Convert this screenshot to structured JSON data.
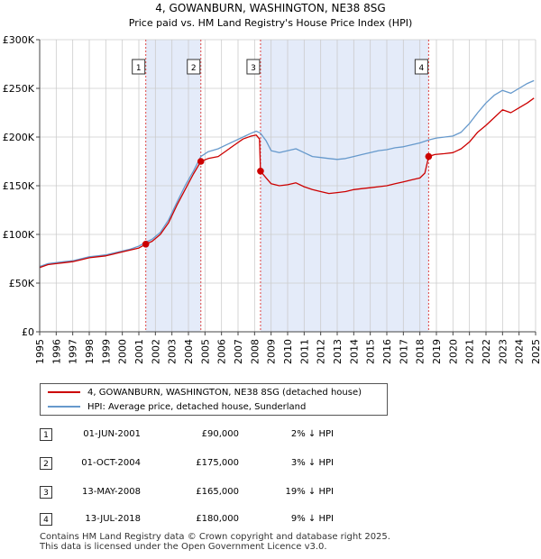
{
  "chart_data": {
    "type": "line",
    "title": "4, GOWANBURN, WASHINGTON, NE38 8SG",
    "subtitle": "Price paid vs. HM Land Registry's House Price Index (HPI)",
    "xlim": [
      1995,
      2025
    ],
    "ylim": [
      0,
      300000
    ],
    "x_ticks": [
      "1995",
      "1996",
      "1997",
      "1998",
      "1999",
      "2000",
      "2001",
      "2002",
      "2003",
      "2004",
      "2005",
      "2006",
      "2007",
      "2008",
      "2009",
      "2010",
      "2011",
      "2012",
      "2013",
      "2014",
      "2015",
      "2016",
      "2017",
      "2018",
      "2019",
      "2020",
      "2021",
      "2022",
      "2023",
      "2024",
      "2025"
    ],
    "y_ticks": [
      {
        "value": 0,
        "label": "£0"
      },
      {
        "value": 50000,
        "label": "£50K"
      },
      {
        "value": 100000,
        "label": "£100K"
      },
      {
        "value": 150000,
        "label": "£150K"
      },
      {
        "value": 200000,
        "label": "£200K"
      },
      {
        "value": 250000,
        "label": "£250K"
      },
      {
        "value": 300000,
        "label": "£300K"
      }
    ],
    "grid": true,
    "shaded_ranges": [
      [
        2001.42,
        2004.75
      ],
      [
        2008.36,
        2018.53
      ]
    ],
    "series": [
      {
        "name": "4, GOWANBURN, WASHINGTON, NE38 8SG (detached house)",
        "color": "#cc0000",
        "points": [
          [
            1995.0,
            66000
          ],
          [
            1995.5,
            69000
          ],
          [
            1996.0,
            70000
          ],
          [
            1996.5,
            71000
          ],
          [
            1997.0,
            72000
          ],
          [
            1997.5,
            74000
          ],
          [
            1998.0,
            76000
          ],
          [
            1998.5,
            77000
          ],
          [
            1999.0,
            78000
          ],
          [
            1999.5,
            80000
          ],
          [
            2000.0,
            82000
          ],
          [
            2000.5,
            84000
          ],
          [
            2001.0,
            86000
          ],
          [
            2001.42,
            90000
          ],
          [
            2001.8,
            93000
          ],
          [
            2002.3,
            100000
          ],
          [
            2002.8,
            112000
          ],
          [
            2003.3,
            130000
          ],
          [
            2003.8,
            146000
          ],
          [
            2004.3,
            162000
          ],
          [
            2004.75,
            175000
          ],
          [
            2005.2,
            178000
          ],
          [
            2005.8,
            180000
          ],
          [
            2006.3,
            186000
          ],
          [
            2006.8,
            192000
          ],
          [
            2007.3,
            198000
          ],
          [
            2007.8,
            201000
          ],
          [
            2008.1,
            202000
          ],
          [
            2008.3,
            198000
          ],
          [
            2008.36,
            165000
          ],
          [
            2008.7,
            158000
          ],
          [
            2009.0,
            152000
          ],
          [
            2009.5,
            150000
          ],
          [
            2010.0,
            151000
          ],
          [
            2010.5,
            153000
          ],
          [
            2011.0,
            149000
          ],
          [
            2011.5,
            146000
          ],
          [
            2012.0,
            144000
          ],
          [
            2012.5,
            142000
          ],
          [
            2013.0,
            143000
          ],
          [
            2013.5,
            144000
          ],
          [
            2014.0,
            146000
          ],
          [
            2014.5,
            147000
          ],
          [
            2015.0,
            148000
          ],
          [
            2015.5,
            149000
          ],
          [
            2016.0,
            150000
          ],
          [
            2016.5,
            152000
          ],
          [
            2017.0,
            154000
          ],
          [
            2017.5,
            156000
          ],
          [
            2018.0,
            158000
          ],
          [
            2018.3,
            163000
          ],
          [
            2018.53,
            180000
          ],
          [
            2018.9,
            182000
          ],
          [
            2019.5,
            183000
          ],
          [
            2020.0,
            184000
          ],
          [
            2020.5,
            188000
          ],
          [
            2021.0,
            195000
          ],
          [
            2021.5,
            205000
          ],
          [
            2022.0,
            212000
          ],
          [
            2022.5,
            220000
          ],
          [
            2023.0,
            228000
          ],
          [
            2023.5,
            225000
          ],
          [
            2024.0,
            230000
          ],
          [
            2024.5,
            235000
          ],
          [
            2024.9,
            240000
          ]
        ]
      },
      {
        "name": "HPI: Average price, detached house, Sunderland",
        "color": "#6699cc",
        "points": [
          [
            1995.0,
            67000
          ],
          [
            1995.5,
            70000
          ],
          [
            1996.0,
            71000
          ],
          [
            1996.5,
            72000
          ],
          [
            1997.0,
            73000
          ],
          [
            1997.5,
            75000
          ],
          [
            1998.0,
            77000
          ],
          [
            1998.5,
            78000
          ],
          [
            1999.0,
            79000
          ],
          [
            1999.5,
            81000
          ],
          [
            2000.0,
            83000
          ],
          [
            2000.5,
            85000
          ],
          [
            2001.0,
            88000
          ],
          [
            2001.42,
            92000
          ],
          [
            2001.8,
            95000
          ],
          [
            2002.3,
            102000
          ],
          [
            2002.8,
            115000
          ],
          [
            2003.3,
            133000
          ],
          [
            2003.8,
            150000
          ],
          [
            2004.3,
            165000
          ],
          [
            2004.75,
            180000
          ],
          [
            2005.2,
            185000
          ],
          [
            2005.8,
            188000
          ],
          [
            2006.3,
            192000
          ],
          [
            2006.8,
            196000
          ],
          [
            2007.3,
            200000
          ],
          [
            2007.8,
            204000
          ],
          [
            2008.1,
            206000
          ],
          [
            2008.36,
            204000
          ],
          [
            2008.7,
            196000
          ],
          [
            2009.0,
            186000
          ],
          [
            2009.5,
            184000
          ],
          [
            2010.0,
            186000
          ],
          [
            2010.5,
            188000
          ],
          [
            2011.0,
            184000
          ],
          [
            2011.5,
            180000
          ],
          [
            2012.0,
            179000
          ],
          [
            2012.5,
            178000
          ],
          [
            2013.0,
            177000
          ],
          [
            2013.5,
            178000
          ],
          [
            2014.0,
            180000
          ],
          [
            2014.5,
            182000
          ],
          [
            2015.0,
            184000
          ],
          [
            2015.5,
            186000
          ],
          [
            2016.0,
            187000
          ],
          [
            2016.5,
            189000
          ],
          [
            2017.0,
            190000
          ],
          [
            2017.5,
            192000
          ],
          [
            2018.0,
            194000
          ],
          [
            2018.53,
            197000
          ],
          [
            2019.0,
            199000
          ],
          [
            2019.5,
            200000
          ],
          [
            2020.0,
            201000
          ],
          [
            2020.5,
            205000
          ],
          [
            2021.0,
            214000
          ],
          [
            2021.5,
            225000
          ],
          [
            2022.0,
            235000
          ],
          [
            2022.5,
            243000
          ],
          [
            2023.0,
            248000
          ],
          [
            2023.5,
            245000
          ],
          [
            2024.0,
            250000
          ],
          [
            2024.5,
            255000
          ],
          [
            2024.9,
            258000
          ]
        ]
      }
    ],
    "sales": [
      {
        "label": "1",
        "x": 2001.42,
        "price": 90000
      },
      {
        "label": "2",
        "x": 2004.75,
        "price": 175000
      },
      {
        "label": "3",
        "x": 2008.36,
        "price": 165000
      },
      {
        "label": "4",
        "x": 2018.53,
        "price": 180000
      }
    ]
  },
  "legend": {
    "property_label": "4, GOWANBURN, WASHINGTON, NE38 8SG (detached house)",
    "hpi_label": "HPI: Average price, detached house, Sunderland",
    "property_color": "#cc0000",
    "hpi_color": "#6699cc"
  },
  "transactions": [
    {
      "num": "1",
      "date": "01-JUN-2001",
      "price": "£90,000",
      "hpi": "2% ↓ HPI"
    },
    {
      "num": "2",
      "date": "01-OCT-2004",
      "price": "£175,000",
      "hpi": "3% ↓ HPI"
    },
    {
      "num": "3",
      "date": "13-MAY-2008",
      "price": "£165,000",
      "hpi": "19% ↓ HPI"
    },
    {
      "num": "4",
      "date": "13-JUL-2018",
      "price": "£180,000",
      "hpi": "9% ↓ HPI"
    }
  ],
  "footer": {
    "line1": "Contains HM Land Registry data © Crown copyright and database right 2025.",
    "line2": "This data is licensed under the Open Government Licence v3.0."
  }
}
